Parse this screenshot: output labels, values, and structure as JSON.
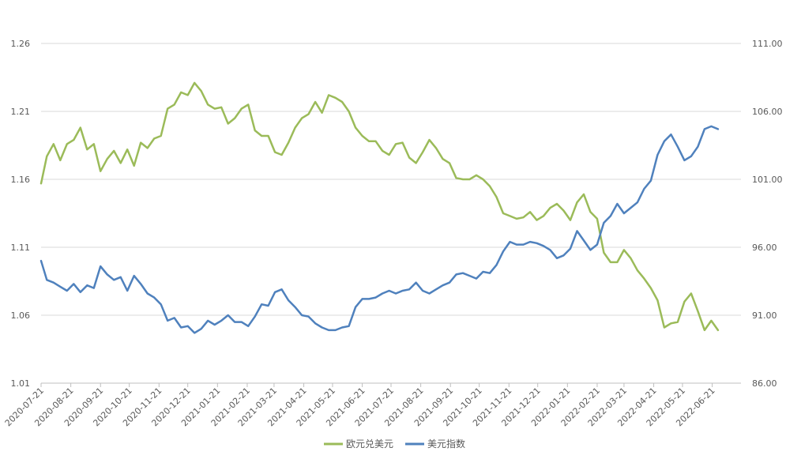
{
  "chart_data": {
    "type": "line",
    "dual_axis": true,
    "grid": "horizontal",
    "legend_position": "bottom",
    "x_ticks": [
      "2020-07-21",
      "2020-08-21",
      "2020-09-21",
      "2020-10-21",
      "2020-11-21",
      "2020-12-21",
      "2021-01-21",
      "2021-02-21",
      "2021-03-21",
      "2021-04-21",
      "2021-05-21",
      "2021-06-21",
      "2021-07-21",
      "2021-08-21",
      "2021-09-21",
      "2021-10-21",
      "2021-11-21",
      "2021-12-21",
      "2022-01-21",
      "2022-02-21",
      "2022-03-21",
      "2022-04-21",
      "2022-05-21",
      "2022-06-21"
    ],
    "y_left": {
      "min": 1.01,
      "max": 1.26,
      "ticks": [
        "1.01",
        "1.06",
        "1.11",
        "1.16",
        "1.21",
        "1.26"
      ]
    },
    "y_right": {
      "min": 86,
      "max": 111,
      "ticks": [
        "86.00",
        "91.00",
        "96.00",
        "101.00",
        "106.00",
        "111.00"
      ]
    },
    "series": [
      {
        "name": "欧元兑美元",
        "axis": "left",
        "color": "#9bbb59",
        "x": [
          "2020-07-21",
          "2020-07-27",
          "2020-08-03",
          "2020-08-10",
          "2020-08-17",
          "2020-08-24",
          "2020-08-31",
          "2020-09-07",
          "2020-09-14",
          "2020-09-21",
          "2020-09-28",
          "2020-10-05",
          "2020-10-12",
          "2020-10-19",
          "2020-10-26",
          "2020-11-02",
          "2020-11-09",
          "2020-11-16",
          "2020-11-23",
          "2020-11-30",
          "2020-12-07",
          "2020-12-14",
          "2020-12-21",
          "2020-12-28",
          "2021-01-04",
          "2021-01-11",
          "2021-01-18",
          "2021-01-25",
          "2021-02-01",
          "2021-02-08",
          "2021-02-15",
          "2021-02-22",
          "2021-03-01",
          "2021-03-08",
          "2021-03-15",
          "2021-03-22",
          "2021-03-29",
          "2021-04-05",
          "2021-04-12",
          "2021-04-19",
          "2021-04-26",
          "2021-05-03",
          "2021-05-10",
          "2021-05-17",
          "2021-05-24",
          "2021-05-31",
          "2021-06-07",
          "2021-06-14",
          "2021-06-21",
          "2021-06-28",
          "2021-07-05",
          "2021-07-12",
          "2021-07-19",
          "2021-07-26",
          "2021-08-02",
          "2021-08-09",
          "2021-08-16",
          "2021-08-23",
          "2021-08-30",
          "2021-09-06",
          "2021-09-13",
          "2021-09-20",
          "2021-09-27",
          "2021-10-04",
          "2021-10-11",
          "2021-10-18",
          "2021-10-25",
          "2021-11-01",
          "2021-11-08",
          "2021-11-15",
          "2021-11-22",
          "2021-11-29",
          "2021-12-06",
          "2021-12-13",
          "2021-12-20",
          "2021-12-27",
          "2022-01-03",
          "2022-01-10",
          "2022-01-17",
          "2022-01-24",
          "2022-01-31",
          "2022-02-07",
          "2022-02-14",
          "2022-02-21",
          "2022-02-28",
          "2022-03-07",
          "2022-03-14",
          "2022-03-21",
          "2022-03-28",
          "2022-04-04",
          "2022-04-11",
          "2022-04-18",
          "2022-04-25",
          "2022-05-02",
          "2022-05-09",
          "2022-05-16",
          "2022-05-23",
          "2022-05-30",
          "2022-06-06",
          "2022-06-13",
          "2022-06-20",
          "2022-06-27"
        ],
        "values": [
          1.157,
          1.177,
          1.186,
          1.174,
          1.186,
          1.189,
          1.198,
          1.182,
          1.186,
          1.166,
          1.175,
          1.181,
          1.172,
          1.182,
          1.17,
          1.187,
          1.183,
          1.19,
          1.192,
          1.212,
          1.215,
          1.224,
          1.222,
          1.231,
          1.225,
          1.215,
          1.212,
          1.213,
          1.201,
          1.205,
          1.212,
          1.215,
          1.196,
          1.192,
          1.192,
          1.18,
          1.178,
          1.187,
          1.198,
          1.205,
          1.208,
          1.217,
          1.209,
          1.222,
          1.22,
          1.217,
          1.21,
          1.198,
          1.192,
          1.188,
          1.188,
          1.181,
          1.178,
          1.186,
          1.187,
          1.176,
          1.172,
          1.18,
          1.189,
          1.183,
          1.175,
          1.172,
          1.161,
          1.16,
          1.16,
          1.163,
          1.16,
          1.155,
          1.147,
          1.135,
          1.133,
          1.131,
          1.132,
          1.136,
          1.13,
          1.133,
          1.139,
          1.142,
          1.137,
          1.13,
          1.143,
          1.149,
          1.136,
          1.131,
          1.106,
          1.099,
          1.099,
          1.108,
          1.102,
          1.093,
          1.087,
          1.08,
          1.071,
          1.051,
          1.054,
          1.055,
          1.07,
          1.076,
          1.063,
          1.049,
          1.056,
          1.049
        ]
      },
      {
        "name": "美元指数",
        "axis": "right",
        "color": "#4f81bd",
        "x": [
          "2020-07-21",
          "2020-07-27",
          "2020-08-03",
          "2020-08-10",
          "2020-08-17",
          "2020-08-24",
          "2020-08-31",
          "2020-09-07",
          "2020-09-14",
          "2020-09-21",
          "2020-09-28",
          "2020-10-05",
          "2020-10-12",
          "2020-10-19",
          "2020-10-26",
          "2020-11-02",
          "2020-11-09",
          "2020-11-16",
          "2020-11-23",
          "2020-11-30",
          "2020-12-07",
          "2020-12-14",
          "2020-12-21",
          "2020-12-28",
          "2021-01-04",
          "2021-01-11",
          "2021-01-18",
          "2021-01-25",
          "2021-02-01",
          "2021-02-08",
          "2021-02-15",
          "2021-02-22",
          "2021-03-01",
          "2021-03-08",
          "2021-03-15",
          "2021-03-22",
          "2021-03-29",
          "2021-04-05",
          "2021-04-12",
          "2021-04-19",
          "2021-04-26",
          "2021-05-03",
          "2021-05-10",
          "2021-05-17",
          "2021-05-24",
          "2021-05-31",
          "2021-06-07",
          "2021-06-14",
          "2021-06-21",
          "2021-06-28",
          "2021-07-05",
          "2021-07-12",
          "2021-07-19",
          "2021-07-26",
          "2021-08-02",
          "2021-08-09",
          "2021-08-16",
          "2021-08-23",
          "2021-08-30",
          "2021-09-06",
          "2021-09-13",
          "2021-09-20",
          "2021-09-27",
          "2021-10-04",
          "2021-10-11",
          "2021-10-18",
          "2021-10-25",
          "2021-11-01",
          "2021-11-08",
          "2021-11-15",
          "2021-11-22",
          "2021-11-29",
          "2021-12-06",
          "2021-12-13",
          "2021-12-20",
          "2021-12-27",
          "2022-01-03",
          "2022-01-10",
          "2022-01-17",
          "2022-01-24",
          "2022-01-31",
          "2022-02-07",
          "2022-02-14",
          "2022-02-21",
          "2022-02-28",
          "2022-03-07",
          "2022-03-14",
          "2022-03-21",
          "2022-03-28",
          "2022-04-04",
          "2022-04-11",
          "2022-04-18",
          "2022-04-25",
          "2022-05-02",
          "2022-05-09",
          "2022-05-16",
          "2022-05-23",
          "2022-05-30",
          "2022-06-06",
          "2022-06-13",
          "2022-06-20",
          "2022-06-27"
        ],
        "values": [
          95.0,
          93.6,
          93.4,
          93.1,
          92.8,
          93.3,
          92.7,
          93.2,
          93.0,
          94.6,
          94.0,
          93.6,
          93.8,
          92.8,
          93.9,
          93.3,
          92.6,
          92.3,
          91.8,
          90.6,
          90.8,
          90.1,
          90.2,
          89.7,
          90.0,
          90.6,
          90.3,
          90.6,
          91.0,
          90.5,
          90.5,
          90.2,
          90.9,
          91.8,
          91.7,
          92.7,
          92.9,
          92.1,
          91.6,
          91.0,
          90.9,
          90.4,
          90.1,
          89.9,
          89.9,
          90.1,
          90.2,
          91.6,
          92.2,
          92.2,
          92.3,
          92.6,
          92.8,
          92.6,
          92.8,
          92.9,
          93.4,
          92.8,
          92.6,
          92.9,
          93.2,
          93.4,
          94.0,
          94.1,
          93.9,
          93.7,
          94.2,
          94.1,
          94.7,
          95.7,
          96.4,
          96.2,
          96.2,
          96.4,
          96.3,
          96.1,
          95.8,
          95.2,
          95.4,
          95.9,
          97.2,
          96.5,
          95.8,
          96.2,
          97.8,
          98.3,
          99.2,
          98.5,
          98.9,
          99.3,
          100.3,
          100.9,
          102.8,
          103.8,
          104.3,
          103.4,
          102.4,
          102.7,
          103.4,
          104.7,
          104.9,
          104.7
        ]
      }
    ]
  }
}
